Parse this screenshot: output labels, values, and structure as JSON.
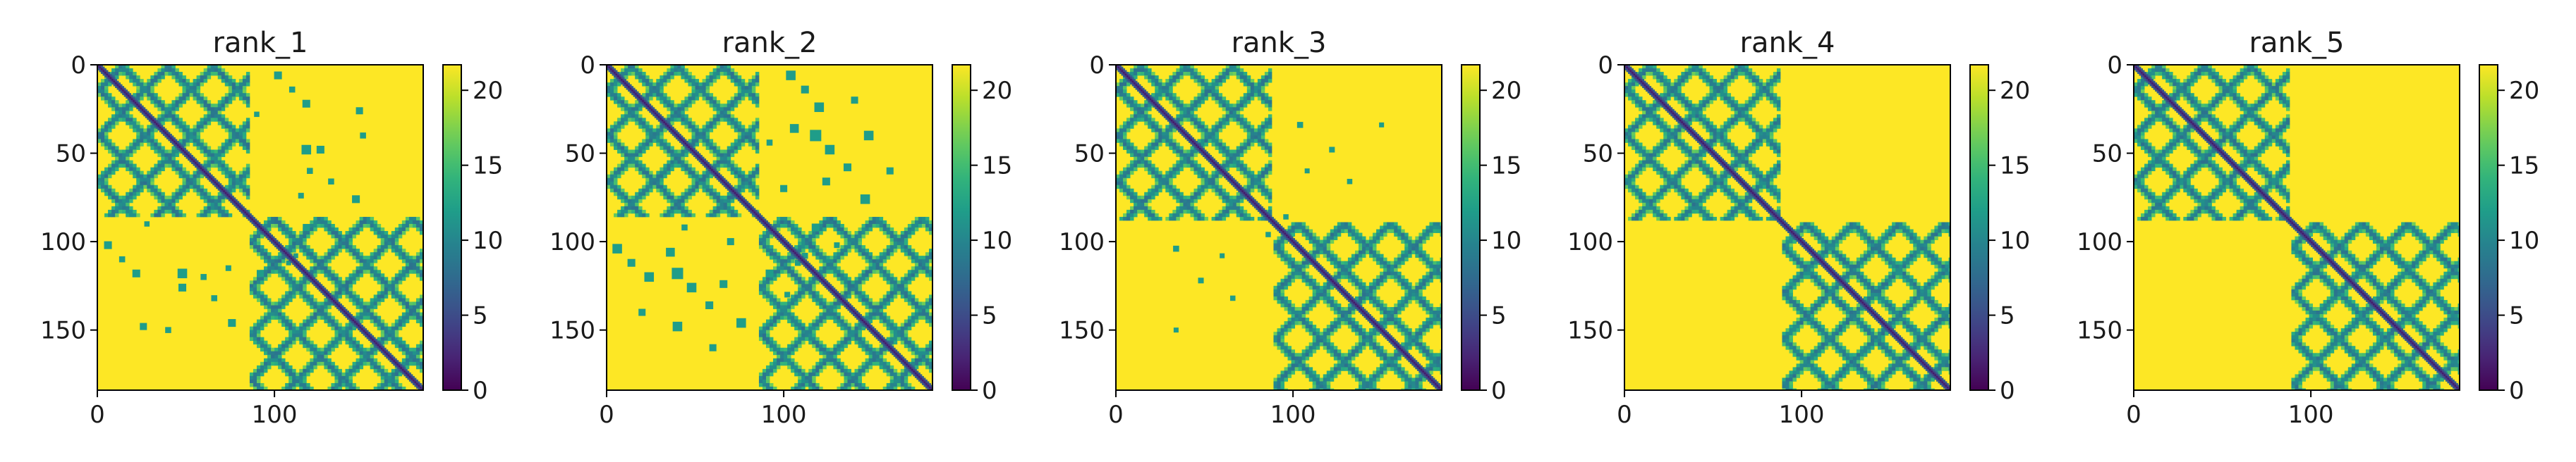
{
  "chart_data": [
    {
      "type": "heatmap",
      "title": "rank_1",
      "xticks": [
        0,
        100
      ],
      "yticks": [
        0,
        50,
        100,
        150
      ],
      "xlim": [
        0,
        184
      ],
      "ylim": [
        184,
        0
      ],
      "colorbar": {
        "ticks": [
          0,
          5,
          10,
          15,
          20
        ],
        "range": [
          0,
          21.7
        ],
        "colormap": "viridis"
      },
      "matrix_size": 184,
      "domains": [
        [
          0,
          85
        ],
        [
          86,
          184
        ]
      ],
      "inter_domain_contacts": [
        [
          102,
          6,
          2.2
        ],
        [
          110,
          14,
          1.7
        ],
        [
          118,
          22,
          2.2
        ],
        [
          118,
          48,
          2.7
        ],
        [
          126,
          48,
          2.2
        ],
        [
          132,
          66,
          1.7
        ],
        [
          146,
          76,
          2.2
        ],
        [
          120,
          60,
          1.7
        ],
        [
          90,
          28,
          1.5
        ],
        [
          150,
          40,
          1.7
        ],
        [
          148,
          26,
          2.0
        ],
        [
          115,
          74,
          1.6
        ],
        [
          118,
          92,
          2.0
        ],
        [
          112,
          108,
          1.4
        ]
      ]
    },
    {
      "type": "heatmap",
      "title": "rank_2",
      "xticks": [
        0,
        100
      ],
      "yticks": [
        0,
        50,
        100,
        150
      ],
      "xlim": [
        0,
        184
      ],
      "ylim": [
        184,
        0
      ],
      "colorbar": {
        "ticks": [
          0,
          5,
          10,
          15,
          20
        ],
        "range": [
          0,
          21.7
        ],
        "colormap": "viridis"
      },
      "matrix_size": 184,
      "domains": [
        [
          0,
          85
        ],
        [
          86,
          184
        ]
      ],
      "inter_domain_contacts": [
        [
          104,
          6,
          2.7
        ],
        [
          112,
          14,
          2.2
        ],
        [
          120,
          24,
          2.7
        ],
        [
          106,
          36,
          2.5
        ],
        [
          118,
          40,
          3.2
        ],
        [
          126,
          48,
          2.7
        ],
        [
          148,
          40,
          2.7
        ],
        [
          136,
          58,
          2.2
        ],
        [
          124,
          66,
          2.2
        ],
        [
          146,
          76,
          2.7
        ],
        [
          92,
          44,
          1.7
        ],
        [
          160,
          60,
          2.0
        ],
        [
          100,
          70,
          2.0
        ],
        [
          140,
          20,
          2.0
        ],
        [
          118,
          92,
          2.2
        ],
        [
          112,
          108,
          1.7
        ],
        [
          130,
          102,
          1.6
        ]
      ]
    },
    {
      "type": "heatmap",
      "title": "rank_3",
      "xticks": [
        0,
        100
      ],
      "yticks": [
        0,
        50,
        100,
        150
      ],
      "xlim": [
        0,
        184
      ],
      "ylim": [
        184,
        0
      ],
      "colorbar": {
        "ticks": [
          0,
          5,
          10,
          15,
          20
        ],
        "range": [
          0,
          21.7
        ],
        "colormap": "viridis"
      },
      "matrix_size": 184,
      "domains": [
        [
          0,
          88
        ],
        [
          89,
          184
        ]
      ],
      "inter_domain_contacts": [
        [
          104,
          34,
          1.7
        ],
        [
          122,
          48,
          1.6
        ],
        [
          132,
          66,
          1.5
        ],
        [
          96,
          86,
          1.5
        ],
        [
          150,
          34,
          1.4
        ],
        [
          108,
          60,
          1.4
        ]
      ]
    },
    {
      "type": "heatmap",
      "title": "rank_4",
      "xticks": [
        0,
        100
      ],
      "yticks": [
        0,
        50,
        100,
        150
      ],
      "xlim": [
        0,
        184
      ],
      "ylim": [
        184,
        0
      ],
      "colorbar": {
        "ticks": [
          0,
          5,
          10,
          15,
          20
        ],
        "range": [
          0,
          21.7
        ],
        "colormap": "viridis"
      },
      "matrix_size": 184,
      "domains": [
        [
          0,
          88
        ],
        [
          89,
          184
        ]
      ],
      "inter_domain_contacts": []
    },
    {
      "type": "heatmap",
      "title": "rank_5",
      "xticks": [
        0,
        100
      ],
      "yticks": [
        0,
        50,
        100,
        150
      ],
      "xlim": [
        0,
        184
      ],
      "ylim": [
        184,
        0
      ],
      "colorbar": {
        "ticks": [
          0,
          5,
          10,
          15,
          20
        ],
        "range": [
          0,
          21.7
        ],
        "colormap": "viridis"
      },
      "matrix_size": 184,
      "domains": [
        [
          0,
          88
        ],
        [
          89,
          184
        ]
      ],
      "inter_domain_contacts": []
    }
  ]
}
